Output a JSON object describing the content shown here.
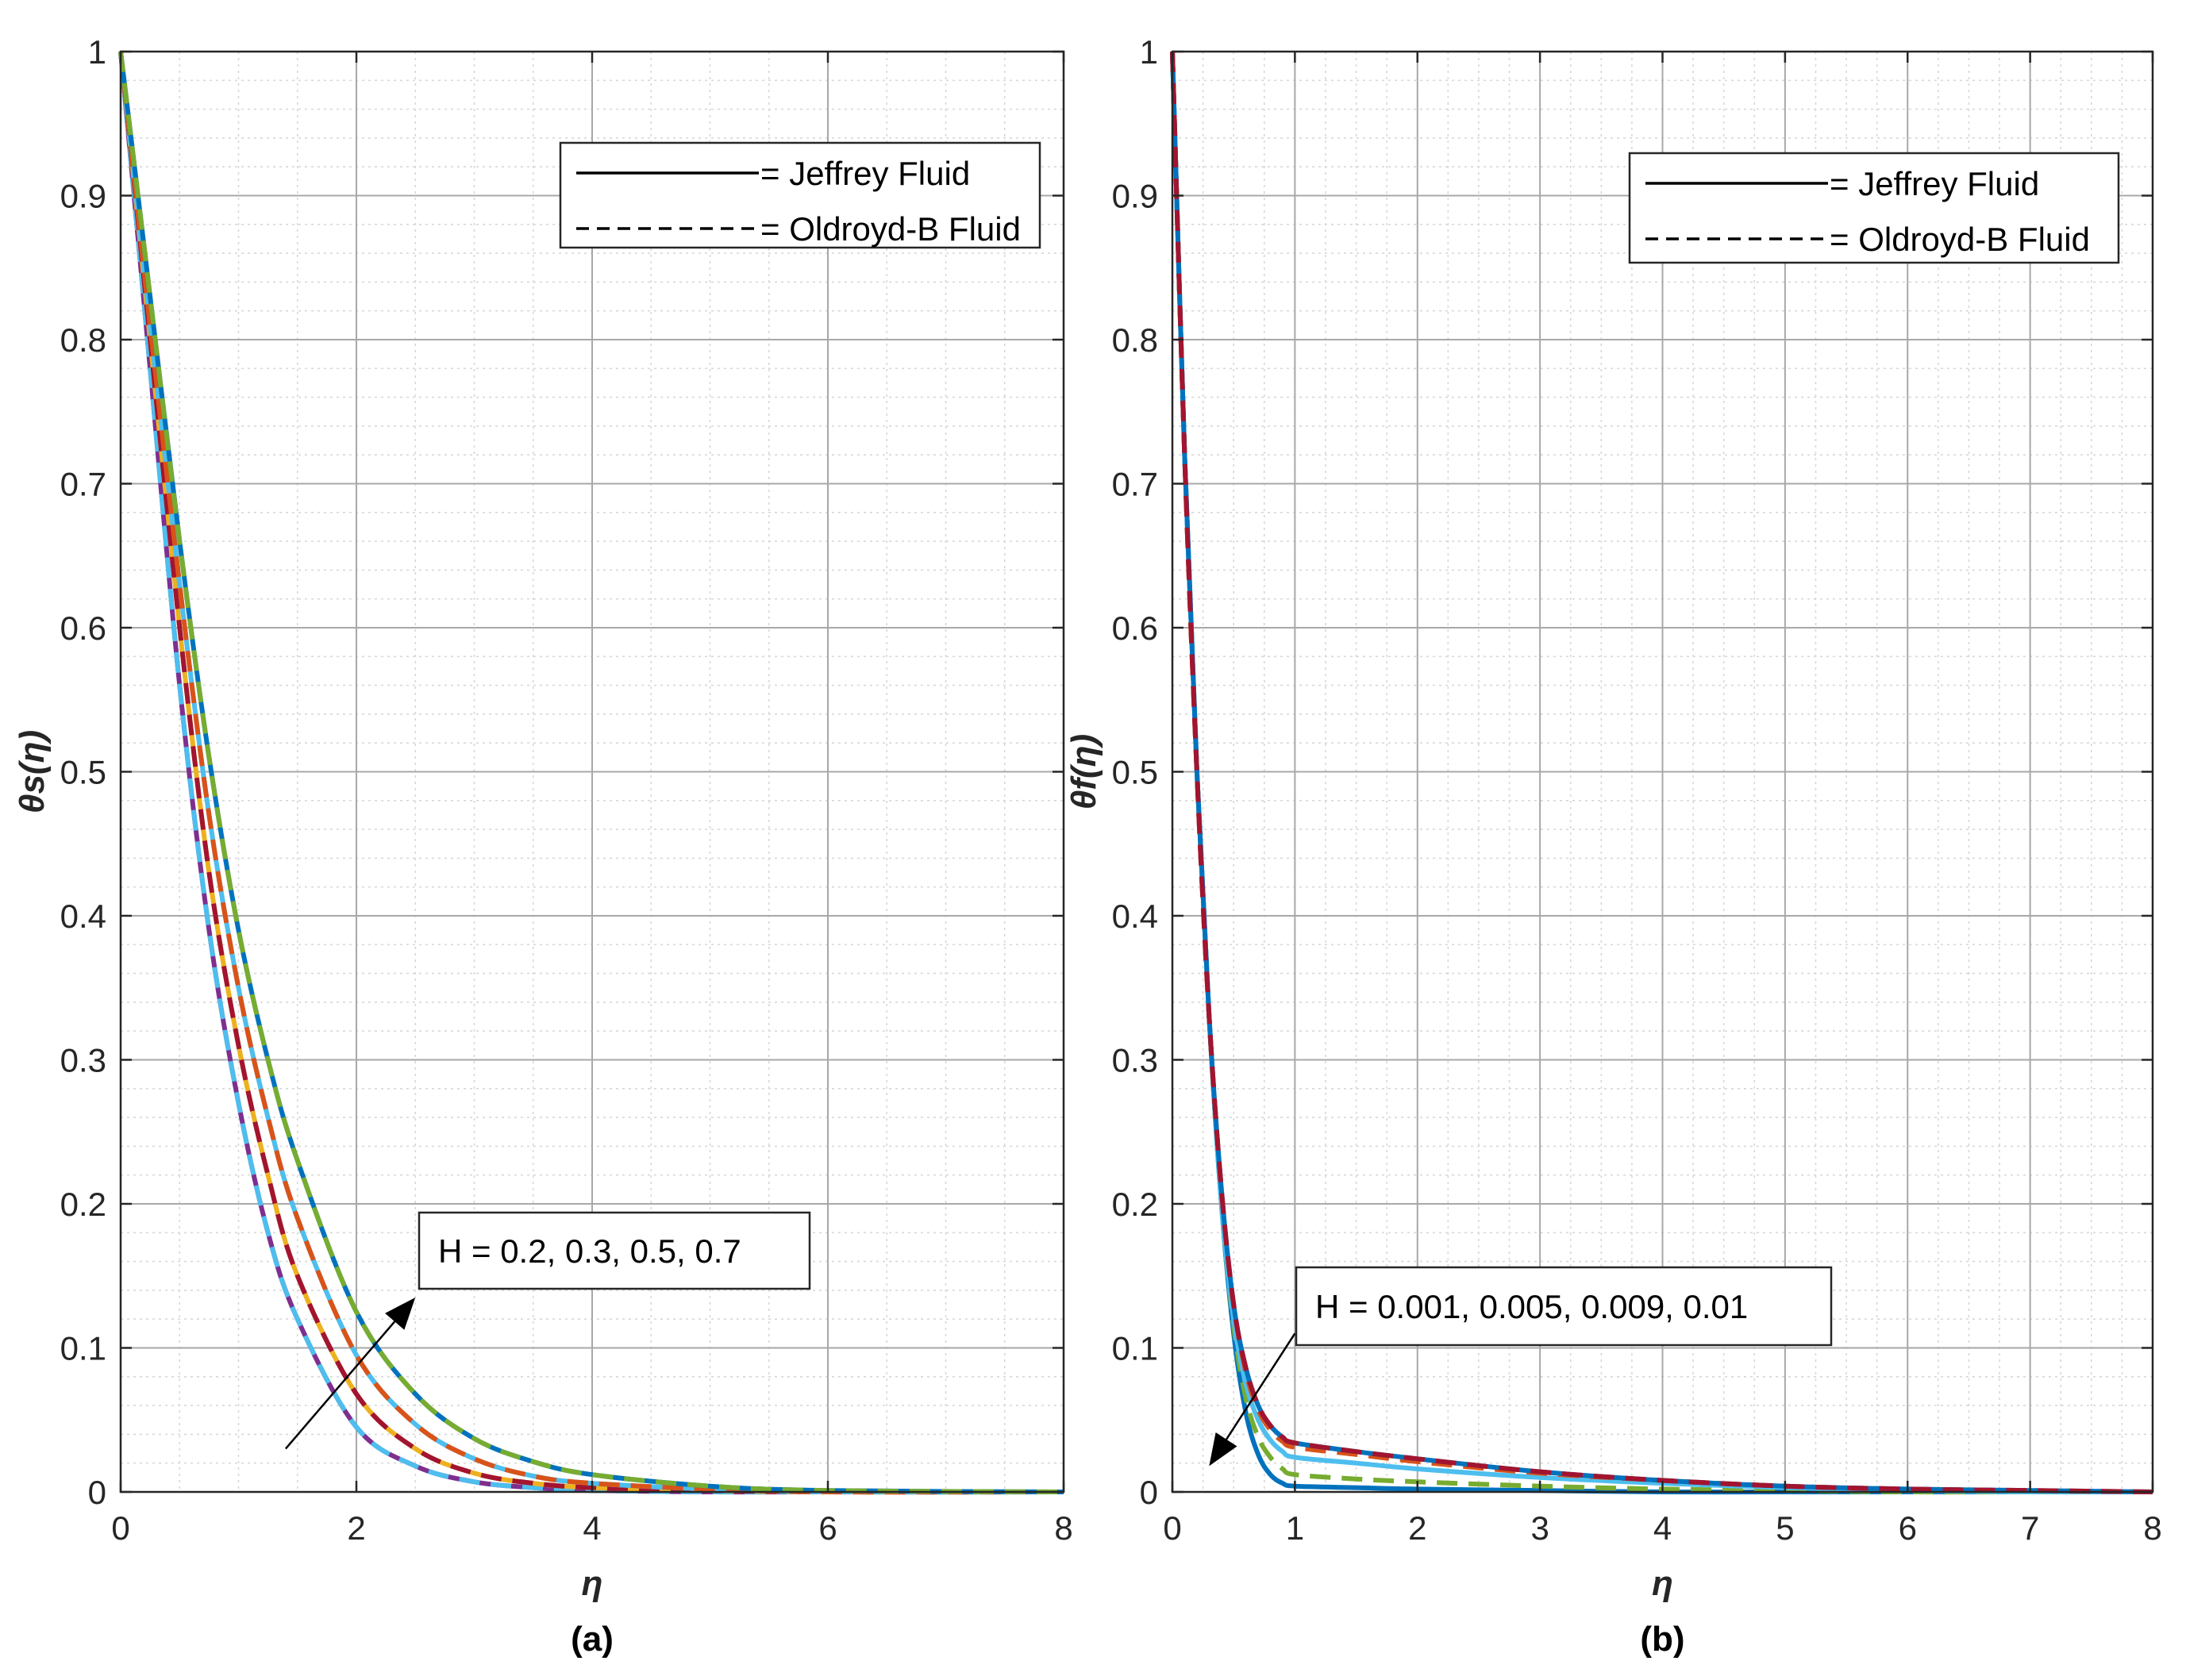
{
  "chart_data": [
    {
      "type": "line",
      "panel_label": "(a)",
      "xlabel": "η",
      "ylabel": "θs(η)",
      "xlim": [
        0,
        8
      ],
      "ylim": [
        0,
        1
      ],
      "xticks": [
        0,
        2,
        4,
        6,
        8
      ],
      "yticks": [
        0,
        0.1,
        0.2,
        0.3,
        0.4,
        0.5,
        0.6,
        0.7,
        0.8,
        0.9,
        1
      ],
      "grid": true,
      "minor_grid": true,
      "legend": {
        "position": "top-right",
        "entries": [
          {
            "text": "= Jeffrey Fluid",
            "style": "solid"
          },
          {
            "text": "= Oldroyd-B Fluid",
            "style": "dashed"
          }
        ]
      },
      "annotation": {
        "text": "H = 0.2, 0.3, 0.5, 0.7",
        "arrow_from": [
          1.4,
          0.03
        ],
        "arrow_to": [
          2.5,
          0.135
        ]
      },
      "x": [
        0,
        0.25,
        0.5,
        0.75,
        1,
        1.25,
        1.5,
        2,
        2.5,
        3,
        3.5,
        4,
        5,
        6,
        8
      ],
      "series": [
        {
          "color": "#7E2F8E",
          "style": "solid",
          "values": [
            1,
            0.78,
            0.56,
            0.39,
            0.27,
            0.18,
            0.12,
            0.045,
            0.018,
            0.007,
            0.003,
            0.001,
            0,
            0,
            0
          ]
        },
        {
          "color": "#4DBEEE",
          "style": "dashed",
          "values": [
            1,
            0.78,
            0.56,
            0.39,
            0.27,
            0.18,
            0.12,
            0.045,
            0.018,
            0.007,
            0.003,
            0.001,
            0,
            0,
            0
          ]
        },
        {
          "color": "#EDB120",
          "style": "solid",
          "values": [
            1,
            0.8,
            0.6,
            0.43,
            0.31,
            0.22,
            0.15,
            0.068,
            0.03,
            0.013,
            0.006,
            0.003,
            0.001,
            0,
            0
          ]
        },
        {
          "color": "#A2142F",
          "style": "dashed",
          "values": [
            1,
            0.8,
            0.6,
            0.43,
            0.31,
            0.22,
            0.15,
            0.068,
            0.03,
            0.013,
            0.006,
            0.003,
            0.001,
            0,
            0
          ]
        },
        {
          "color": "#4DBEEE",
          "style": "solid",
          "values": [
            1,
            0.81,
            0.63,
            0.47,
            0.35,
            0.26,
            0.19,
            0.095,
            0.047,
            0.023,
            0.011,
            0.006,
            0.002,
            0,
            0
          ]
        },
        {
          "color": "#D95319",
          "style": "dashed",
          "values": [
            1,
            0.81,
            0.63,
            0.47,
            0.35,
            0.26,
            0.19,
            0.095,
            0.047,
            0.023,
            0.011,
            0.006,
            0.002,
            0,
            0
          ]
        },
        {
          "color": "#0072BD",
          "style": "solid",
          "values": [
            1,
            0.83,
            0.66,
            0.51,
            0.39,
            0.3,
            0.23,
            0.125,
            0.068,
            0.037,
            0.021,
            0.012,
            0.004,
            0.001,
            0
          ]
        },
        {
          "color": "#77AC30",
          "style": "dashed",
          "values": [
            1,
            0.83,
            0.66,
            0.51,
            0.39,
            0.3,
            0.23,
            0.125,
            0.068,
            0.037,
            0.021,
            0.012,
            0.004,
            0.001,
            0
          ]
        }
      ]
    },
    {
      "type": "line",
      "panel_label": "(b)",
      "xlabel": "η",
      "ylabel": "θf(η)",
      "xlim": [
        0,
        8
      ],
      "ylim": [
        0,
        1
      ],
      "xticks": [
        0,
        1,
        2,
        3,
        4,
        5,
        6,
        7,
        8
      ],
      "yticks": [
        0,
        0.1,
        0.2,
        0.3,
        0.4,
        0.5,
        0.6,
        0.7,
        0.8,
        0.9,
        1
      ],
      "grid": true,
      "minor_grid": true,
      "legend": {
        "position": "top-right",
        "entries": [
          {
            "text": "= Jeffrey Fluid",
            "style": "solid"
          },
          {
            "text": "= Oldroyd-B Fluid",
            "style": "dashed"
          }
        ]
      },
      "annotation": {
        "text": "H = 0.001, 0.005, 0.009, 0.01",
        "arrow_from": [
          1.0,
          0.11
        ],
        "arrow_to": [
          0.3,
          0.018
        ]
      },
      "x": [
        0,
        0.1,
        0.2,
        0.3,
        0.4,
        0.5,
        0.6,
        0.7,
        0.8,
        0.9,
        1,
        1.5,
        2,
        3,
        4,
        5,
        6,
        7,
        8
      ],
      "series": [
        {
          "color": "#0072BD",
          "style": "solid",
          "values": [
            1,
            0.72,
            0.5,
            0.33,
            0.2,
            0.11,
            0.055,
            0.026,
            0.012,
            0.006,
            0.004,
            0.003,
            0.002,
            0.001,
            0,
            0,
            0,
            0,
            0
          ]
        },
        {
          "color": "#77AC30",
          "style": "dashed",
          "values": [
            1,
            0.72,
            0.5,
            0.33,
            0.2,
            0.115,
            0.065,
            0.038,
            0.024,
            0.016,
            0.012,
            0.009,
            0.007,
            0.004,
            0.002,
            0.001,
            0,
            0,
            0
          ]
        },
        {
          "color": "#4DBEEE",
          "style": "solid",
          "values": [
            1,
            0.72,
            0.5,
            0.33,
            0.2,
            0.12,
            0.075,
            0.05,
            0.036,
            0.028,
            0.024,
            0.02,
            0.016,
            0.01,
            0.006,
            0.003,
            0.001,
            0,
            0
          ]
        },
        {
          "color": "#D95319",
          "style": "dashed",
          "values": [
            1,
            0.72,
            0.5,
            0.33,
            0.21,
            0.13,
            0.083,
            0.057,
            0.043,
            0.035,
            0.031,
            0.026,
            0.021,
            0.013,
            0.008,
            0.004,
            0.002,
            0.001,
            0
          ]
        },
        {
          "color": "#0072BD",
          "style": "solid",
          "values": [
            1,
            0.72,
            0.5,
            0.33,
            0.21,
            0.13,
            0.086,
            0.06,
            0.046,
            0.038,
            0.034,
            0.028,
            0.023,
            0.014,
            0.008,
            0.004,
            0.002,
            0.001,
            0
          ]
        },
        {
          "color": "#A2142F",
          "style": "dashed",
          "values": [
            1,
            0.72,
            0.5,
            0.33,
            0.21,
            0.13,
            0.086,
            0.06,
            0.046,
            0.038,
            0.034,
            0.028,
            0.023,
            0.014,
            0.008,
            0.004,
            0.002,
            0.001,
            0
          ]
        }
      ]
    }
  ]
}
